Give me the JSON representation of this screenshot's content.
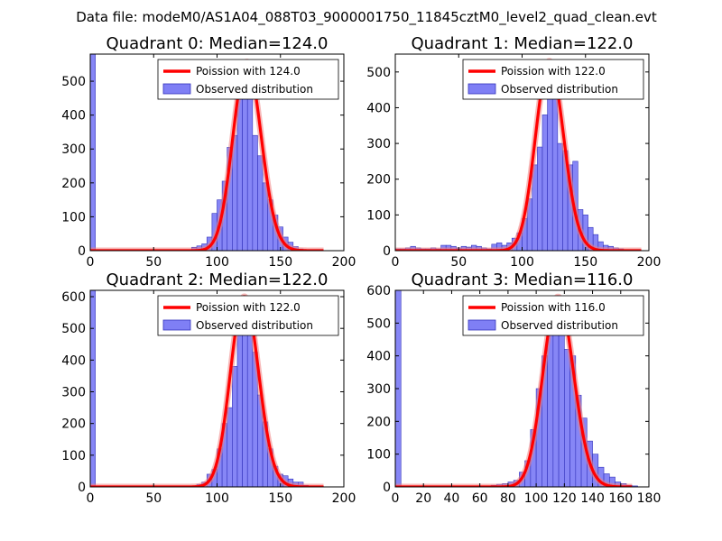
{
  "suptitle": "Data file: modeM0/AS1A04_088T03_9000001750_11845cztM0_level2_quad_clean.evt",
  "colors": {
    "hist_fill": "#7f7ff5",
    "hist_edge": "#3333bb",
    "curve": "#ff0000",
    "curve_glow": "#f08080",
    "axis": "#000000"
  },
  "chart_data": [
    {
      "type": "bar",
      "title": "Quadrant 0: Median=124.0",
      "xlim": [
        0,
        200
      ],
      "ylim": [
        0,
        580
      ],
      "xticks": [
        0,
        50,
        100,
        150,
        200
      ],
      "yticks": [
        0,
        100,
        200,
        300,
        400,
        500
      ],
      "legend": {
        "position": "top-right",
        "entries": [
          "Poission with 124.0",
          "Observed distribution"
        ]
      },
      "histogram": {
        "bin_width": 4,
        "bins": [
          [
            0,
            580
          ],
          [
            80,
            10
          ],
          [
            84,
            14
          ],
          [
            88,
            20
          ],
          [
            92,
            40
          ],
          [
            96,
            110
          ],
          [
            100,
            150
          ],
          [
            104,
            205
          ],
          [
            108,
            305
          ],
          [
            112,
            340
          ],
          [
            116,
            480
          ],
          [
            120,
            540
          ],
          [
            124,
            490
          ],
          [
            128,
            340
          ],
          [
            132,
            280
          ],
          [
            136,
            200
          ],
          [
            140,
            150
          ],
          [
            144,
            105
          ],
          [
            148,
            70
          ],
          [
            152,
            40
          ],
          [
            156,
            25
          ],
          [
            160,
            12
          ],
          [
            164,
            5
          ],
          [
            168,
            3
          ],
          [
            172,
            2
          ],
          [
            176,
            1
          ]
        ]
      },
      "poisson": {
        "mean": 124.0,
        "peak": 557,
        "x_range": [
          0,
          184
        ]
      }
    },
    {
      "type": "bar",
      "title": "Quadrant 1: Median=122.0",
      "xlim": [
        0,
        200
      ],
      "ylim": [
        0,
        550
      ],
      "xticks": [
        0,
        50,
        100,
        150,
        200
      ],
      "yticks": [
        0,
        100,
        200,
        300,
        400,
        500
      ],
      "legend": {
        "position": "top-right",
        "entries": [
          "Poission with 122.0",
          "Observed distribution"
        ]
      },
      "histogram": {
        "bin_width": 4,
        "bins": [
          [
            0,
            5
          ],
          [
            4,
            5
          ],
          [
            8,
            8
          ],
          [
            12,
            12
          ],
          [
            16,
            8
          ],
          [
            20,
            5
          ],
          [
            24,
            5
          ],
          [
            28,
            8
          ],
          [
            32,
            5
          ],
          [
            36,
            15
          ],
          [
            40,
            15
          ],
          [
            44,
            12
          ],
          [
            48,
            8
          ],
          [
            52,
            12
          ],
          [
            56,
            10
          ],
          [
            60,
            15
          ],
          [
            64,
            12
          ],
          [
            68,
            8
          ],
          [
            72,
            5
          ],
          [
            76,
            18
          ],
          [
            80,
            22
          ],
          [
            84,
            15
          ],
          [
            88,
            22
          ],
          [
            92,
            35
          ],
          [
            96,
            50
          ],
          [
            100,
            90
          ],
          [
            104,
            145
          ],
          [
            108,
            240
          ],
          [
            112,
            290
          ],
          [
            116,
            380
          ],
          [
            120,
            480
          ],
          [
            124,
            425
          ],
          [
            128,
            300
          ],
          [
            132,
            280
          ],
          [
            136,
            240
          ],
          [
            140,
            250
          ],
          [
            144,
            115
          ],
          [
            148,
            100
          ],
          [
            152,
            65
          ],
          [
            156,
            45
          ],
          [
            160,
            25
          ],
          [
            164,
            15
          ],
          [
            168,
            12
          ],
          [
            172,
            8
          ],
          [
            176,
            5
          ],
          [
            180,
            3
          ]
        ]
      },
      "poisson": {
        "mean": 122.0,
        "peak": 530,
        "x_range": [
          0,
          194
        ]
      }
    },
    {
      "type": "bar",
      "title": "Quadrant 2: Median=122.0",
      "xlim": [
        0,
        200
      ],
      "ylim": [
        0,
        620
      ],
      "xticks": [
        0,
        50,
        100,
        150,
        200
      ],
      "yticks": [
        0,
        100,
        200,
        300,
        400,
        500,
        600
      ],
      "legend": {
        "position": "top-right",
        "entries": [
          "Poission with 122.0",
          "Observed distribution"
        ]
      },
      "histogram": {
        "bin_width": 4,
        "bins": [
          [
            0,
            620
          ],
          [
            84,
            8
          ],
          [
            88,
            15
          ],
          [
            92,
            40
          ],
          [
            96,
            55
          ],
          [
            100,
            120
          ],
          [
            104,
            200
          ],
          [
            108,
            250
          ],
          [
            112,
            380
          ],
          [
            116,
            520
          ],
          [
            120,
            580
          ],
          [
            124,
            540
          ],
          [
            128,
            425
          ],
          [
            132,
            290
          ],
          [
            136,
            205
          ],
          [
            140,
            120
          ],
          [
            144,
            65
          ],
          [
            148,
            40
          ],
          [
            152,
            35
          ],
          [
            156,
            25
          ],
          [
            160,
            15
          ],
          [
            164,
            15
          ],
          [
            168,
            5
          ],
          [
            172,
            3
          ],
          [
            176,
            2
          ],
          [
            180,
            1
          ]
        ]
      },
      "poisson": {
        "mean": 122.0,
        "peak": 600,
        "x_range": [
          0,
          184
        ]
      }
    },
    {
      "type": "bar",
      "title": "Quadrant 3: Median=116.0",
      "xlim": [
        0,
        180
      ],
      "ylim": [
        0,
        600
      ],
      "xticks": [
        0,
        20,
        40,
        60,
        80,
        100,
        120,
        140,
        160,
        180
      ],
      "yticks": [
        0,
        100,
        200,
        300,
        400,
        500,
        600
      ],
      "legend": {
        "position": "top-right",
        "entries": [
          "Poission with 116.0",
          "Observed distribution"
        ]
      },
      "histogram": {
        "bin_width": 4,
        "bins": [
          [
            0,
            600
          ],
          [
            68,
            5
          ],
          [
            72,
            8
          ],
          [
            76,
            10
          ],
          [
            80,
            15
          ],
          [
            84,
            20
          ],
          [
            88,
            45
          ],
          [
            92,
            80
          ],
          [
            96,
            175
          ],
          [
            100,
            300
          ],
          [
            104,
            400
          ],
          [
            108,
            480
          ],
          [
            112,
            530
          ],
          [
            116,
            500
          ],
          [
            120,
            420
          ],
          [
            124,
            400
          ],
          [
            128,
            280
          ],
          [
            132,
            210
          ],
          [
            136,
            140
          ],
          [
            140,
            100
          ],
          [
            144,
            60
          ],
          [
            148,
            40
          ],
          [
            152,
            30
          ],
          [
            156,
            15
          ],
          [
            160,
            10
          ],
          [
            164,
            5
          ],
          [
            168,
            3
          ]
        ]
      },
      "poisson": {
        "mean": 116.0,
        "peak": 580,
        "x_range": [
          0,
          168
        ]
      }
    }
  ]
}
